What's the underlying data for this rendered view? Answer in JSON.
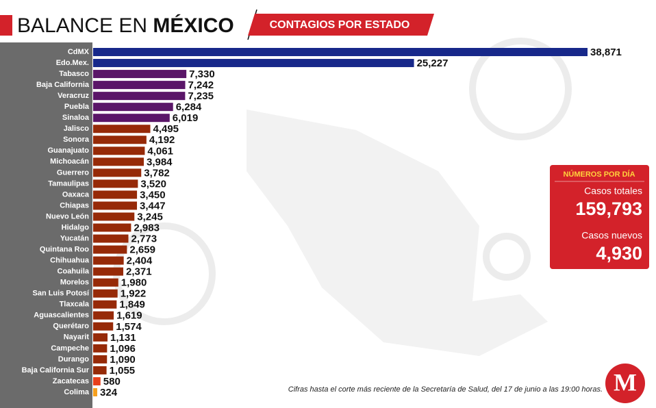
{
  "chart_data": {
    "type": "bar",
    "orientation": "horizontal",
    "title": "BALANCE EN",
    "title_emphasis": "MÉXICO",
    "subtitle": "CONTAGIOS POR ESTADO",
    "categories": [
      "CdMX",
      "Edo.Mex.",
      "Tabasco",
      "Baja California",
      "Veracruz",
      "Puebla",
      "Sinaloa",
      "Jalisco",
      "Sonora",
      "Guanajuato",
      "Michoacán",
      "Guerrero",
      "Tamaulipas",
      "Oaxaca",
      "Chiapas",
      "Nuevo León",
      "Hidalgo",
      "Yucatán",
      "Quintana Roo",
      "Chihuahua",
      "Coahuila",
      "Morelos",
      "San Luis Potosí",
      "Tlaxcala",
      "Aguascalientes",
      "Querétaro",
      "Nayarit",
      "Campeche",
      "Durango",
      "Baja California Sur",
      "Zacatecas",
      "Colima"
    ],
    "values": [
      38871,
      25227,
      7330,
      7242,
      7235,
      6284,
      6019,
      4495,
      4192,
      4061,
      3984,
      3782,
      3520,
      3450,
      3447,
      3245,
      2983,
      2773,
      2659,
      2404,
      2371,
      1980,
      1922,
      1849,
      1619,
      1574,
      1131,
      1096,
      1090,
      1055,
      580,
      324
    ],
    "value_labels": [
      "38,871",
      "25,227",
      "7,330",
      "7,242",
      "7,235",
      "6,284",
      "6,019",
      "4,495",
      "4,192",
      "4,061",
      "3,984",
      "3,782",
      "3,520",
      "3,450",
      "3,447",
      "3,245",
      "2,983",
      "2,773",
      "2,659",
      "2,404",
      "2,371",
      "1,980",
      "1,922",
      "1,849",
      "1,619",
      "1,574",
      "1,131",
      "1,096",
      "1,090",
      "1,055",
      "580",
      "324"
    ],
    "colors": [
      "#17288a",
      "#17288a",
      "#5a1668",
      "#5a1668",
      "#5a1668",
      "#5a1668",
      "#5a1668",
      "#962a08",
      "#962a08",
      "#962a08",
      "#962a08",
      "#962a08",
      "#962a08",
      "#962a08",
      "#962a08",
      "#962a08",
      "#962a08",
      "#962a08",
      "#962a08",
      "#962a08",
      "#962a08",
      "#962a08",
      "#962a08",
      "#962a08",
      "#962a08",
      "#962a08",
      "#962a08",
      "#962a08",
      "#962a08",
      "#962a08",
      "#e8401c",
      "#f5a01e"
    ],
    "summary": {
      "heading": "NÚMEROS POR DÍA",
      "total_label": "Casos totales",
      "total": {
        "value": 159793,
        "label": "159,793"
      },
      "new_label": "Casos nuevos",
      "new": {
        "value": 4930,
        "label": "4,930"
      }
    },
    "footnote": "Cifras hasta el corte más reciente de la Secretaría de Salud, del 17 de junio a las 19:00 horas.",
    "logo": "M"
  }
}
